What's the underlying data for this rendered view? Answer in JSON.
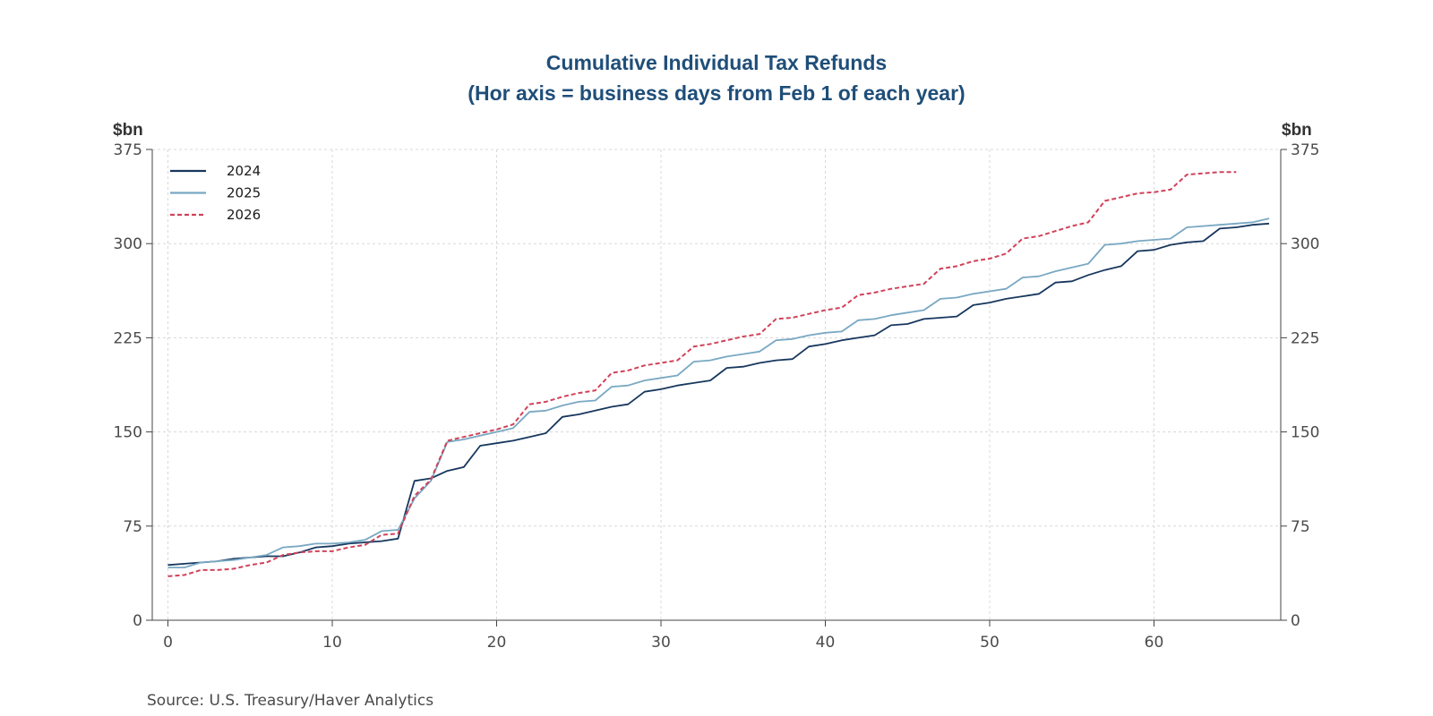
{
  "chart_data": {
    "type": "line",
    "title": "Cumulative Individual Tax Refunds",
    "subtitle": "(Hor axis = business days from Feb 1 of each year)",
    "ylabel_left": "$bn",
    "ylabel_right": "$bn",
    "xlim": [
      0,
      68
    ],
    "ylim": [
      0,
      375
    ],
    "x_ticks": [
      0,
      10,
      20,
      30,
      40,
      50,
      60
    ],
    "y_ticks": [
      0,
      75,
      150,
      225,
      300,
      375
    ],
    "grid": true,
    "legend_position": "top-left",
    "source": "Source:  U.S. Treasury/Haver Analytics",
    "series": [
      {
        "name": "2024",
        "color": "#17375e",
        "style": "solid",
        "x": [
          0,
          1,
          2,
          3,
          4,
          5,
          6,
          7,
          8,
          9,
          10,
          11,
          12,
          13,
          14,
          15,
          16,
          17,
          18,
          19,
          20,
          21,
          22,
          23,
          24,
          25,
          26,
          27,
          28,
          29,
          30,
          31,
          32,
          33,
          34,
          35,
          36,
          37,
          38,
          39,
          40,
          41,
          42,
          43,
          44,
          45,
          46,
          47,
          48,
          49,
          50,
          51,
          52,
          53,
          54,
          55,
          56,
          57,
          58,
          59,
          60,
          61,
          62,
          63,
          64,
          65,
          66,
          67
        ],
        "values": [
          44,
          45,
          46,
          47,
          49,
          50,
          51,
          51,
          54,
          58,
          59,
          61,
          62,
          63,
          65,
          111,
          113,
          119,
          122,
          139,
          141,
          143,
          146,
          149,
          162,
          164,
          167,
          170,
          172,
          182,
          184,
          187,
          189,
          191,
          201,
          202,
          205,
          207,
          208,
          218,
          220,
          223,
          225,
          227,
          235,
          236,
          240,
          241,
          242,
          251,
          253,
          256,
          258,
          260,
          269,
          270,
          275,
          279,
          282,
          294,
          295,
          299,
          301,
          302,
          312,
          313,
          315,
          316
        ]
      },
      {
        "name": "2025",
        "color": "#79a8c3",
        "style": "solid",
        "x": [
          0,
          1,
          2,
          3,
          4,
          5,
          6,
          7,
          8,
          9,
          10,
          11,
          12,
          13,
          14,
          15,
          16,
          17,
          18,
          19,
          20,
          21,
          22,
          23,
          24,
          25,
          26,
          27,
          28,
          29,
          30,
          31,
          32,
          33,
          34,
          35,
          36,
          37,
          38,
          39,
          40,
          41,
          42,
          43,
          44,
          45,
          46,
          47,
          48,
          49,
          50,
          51,
          52,
          53,
          54,
          55,
          56,
          57,
          58,
          59,
          60,
          61,
          62,
          63,
          64,
          65,
          66,
          67
        ],
        "values": [
          42,
          42,
          46,
          47,
          48,
          50,
          52,
          58,
          59,
          61,
          61,
          62,
          64,
          71,
          72,
          97,
          111,
          142,
          144,
          147,
          150,
          153,
          166,
          167,
          171,
          174,
          175,
          186,
          187,
          191,
          193,
          195,
          206,
          207,
          210,
          212,
          214,
          223,
          224,
          227,
          229,
          230,
          239,
          240,
          243,
          245,
          247,
          256,
          257,
          260,
          262,
          264,
          273,
          274,
          278,
          281,
          284,
          299,
          300,
          302,
          303,
          304,
          313,
          314,
          315,
          316,
          317,
          320
        ]
      },
      {
        "name": "2026",
        "color": "#d0425a",
        "style": "dashed",
        "x": [
          0,
          1,
          2,
          3,
          4,
          5,
          6,
          7,
          8,
          9,
          10,
          11,
          12,
          13,
          14,
          15,
          16,
          17,
          18,
          19,
          20,
          21,
          22,
          23,
          24,
          25,
          26,
          27,
          28,
          29,
          30,
          31,
          32,
          33,
          34,
          35,
          36,
          37,
          38,
          39,
          40,
          41,
          42,
          43,
          44,
          45,
          46,
          47,
          48,
          49,
          50,
          51,
          52,
          53,
          54,
          55,
          56,
          57,
          58,
          59,
          60,
          61,
          62,
          63,
          64,
          65
        ],
        "values": [
          35,
          36,
          40,
          40,
          41,
          44,
          46,
          52,
          54,
          55,
          55,
          58,
          60,
          68,
          69,
          99,
          112,
          143,
          146,
          149,
          152,
          156,
          172,
          174,
          178,
          181,
          183,
          197,
          199,
          203,
          205,
          207,
          218,
          220,
          223,
          226,
          228,
          240,
          241,
          244,
          247,
          249,
          259,
          261,
          264,
          266,
          268,
          280,
          282,
          286,
          288,
          292,
          304,
          306,
          310,
          314,
          317,
          334,
          337,
          340,
          341,
          343,
          355,
          356,
          357,
          357
        ]
      }
    ]
  }
}
